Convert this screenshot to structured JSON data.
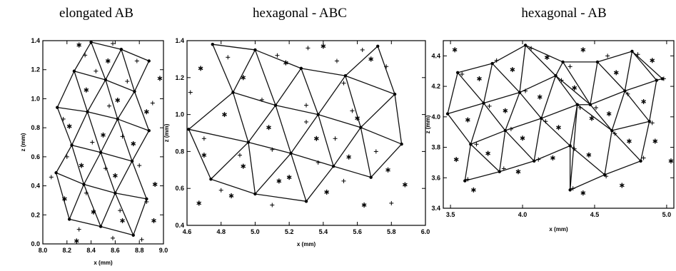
{
  "chart_data": [
    {
      "type": "scatter",
      "title": "elongated AB",
      "xlabel": "x (mm)",
      "ylabel": "z (mm)",
      "xlim": [
        8.0,
        9.0
      ],
      "ylim": [
        0.0,
        1.4
      ],
      "x_ticks": [
        "8.0",
        "8.2",
        "8.4",
        "8.6",
        "8.8",
        "9.0"
      ],
      "y_ticks": [
        "0.0",
        "0.2",
        "0.4",
        "0.6",
        "0.8",
        "1.0",
        "1.2",
        "1.4"
      ],
      "grid": false,
      "nodes": [
        [
          8.4,
          1.39
        ],
        [
          8.65,
          1.34
        ],
        [
          8.88,
          1.26
        ],
        [
          8.26,
          1.19
        ],
        [
          8.52,
          1.13
        ],
        [
          8.76,
          1.05
        ],
        [
          8.12,
          0.94
        ],
        [
          8.37,
          0.91
        ],
        [
          8.62,
          0.86
        ],
        [
          8.88,
          0.78
        ],
        [
          8.24,
          0.68
        ],
        [
          8.48,
          0.63
        ],
        [
          8.74,
          0.57
        ],
        [
          8.11,
          0.49
        ],
        [
          8.34,
          0.41
        ],
        [
          8.6,
          0.35
        ],
        [
          8.86,
          0.31
        ],
        [
          8.22,
          0.17
        ],
        [
          8.48,
          0.12
        ],
        [
          8.75,
          0.06
        ]
      ],
      "edges": [
        [
          0,
          1
        ],
        [
          1,
          2
        ],
        [
          3,
          4
        ],
        [
          4,
          5
        ],
        [
          6,
          7
        ],
        [
          7,
          8
        ],
        [
          8,
          9
        ],
        [
          10,
          11
        ],
        [
          11,
          12
        ],
        [
          13,
          14
        ],
        [
          14,
          15
        ],
        [
          15,
          16
        ],
        [
          17,
          18
        ],
        [
          18,
          19
        ],
        [
          0,
          3
        ],
        [
          0,
          4
        ],
        [
          1,
          4
        ],
        [
          1,
          5
        ],
        [
          2,
          5
        ],
        [
          3,
          6
        ],
        [
          3,
          7
        ],
        [
          4,
          7
        ],
        [
          4,
          8
        ],
        [
          5,
          8
        ],
        [
          5,
          9
        ],
        [
          6,
          10
        ],
        [
          7,
          10
        ],
        [
          7,
          11
        ],
        [
          8,
          11
        ],
        [
          8,
          12
        ],
        [
          9,
          12
        ],
        [
          10,
          13
        ],
        [
          10,
          14
        ],
        [
          11,
          14
        ],
        [
          11,
          15
        ],
        [
          12,
          15
        ],
        [
          12,
          16
        ],
        [
          13,
          17
        ],
        [
          14,
          17
        ],
        [
          14,
          18
        ],
        [
          15,
          18
        ],
        [
          15,
          19
        ],
        [
          16,
          19
        ]
      ],
      "stars": [
        [
          8.3,
          1.37
        ],
        [
          8.54,
          1.26
        ],
        [
          8.97,
          1.14
        ],
        [
          8.36,
          1.06
        ],
        [
          8.62,
          0.99
        ],
        [
          8.22,
          0.81
        ],
        [
          8.5,
          0.75
        ],
        [
          8.75,
          0.69
        ],
        [
          8.86,
          0.91
        ],
        [
          8.32,
          0.54
        ],
        [
          8.6,
          0.47
        ],
        [
          8.93,
          0.41
        ],
        [
          8.18,
          0.31
        ],
        [
          8.42,
          0.22
        ],
        [
          8.66,
          0.16
        ],
        [
          8.92,
          0.16
        ],
        [
          8.28,
          0.02
        ]
      ],
      "pluses": [
        [
          8.58,
          1.38
        ],
        [
          8.35,
          1.3
        ],
        [
          8.78,
          1.26
        ],
        [
          8.44,
          1.19
        ],
        [
          8.7,
          1.12
        ],
        [
          8.91,
          0.97
        ],
        [
          8.55,
          0.95
        ],
        [
          8.17,
          0.86
        ],
        [
          8.66,
          0.74
        ],
        [
          8.41,
          0.7
        ],
        [
          8.2,
          0.6
        ],
        [
          8.8,
          0.54
        ],
        [
          8.52,
          0.52
        ],
        [
          8.07,
          0.46
        ],
        [
          8.36,
          0.35
        ],
        [
          8.64,
          0.23
        ],
        [
          8.86,
          0.29
        ],
        [
          8.3,
          0.1
        ],
        [
          8.58,
          0.04
        ],
        [
          8.82,
          0.03
        ]
      ]
    },
    {
      "type": "scatter",
      "title": "hexagonal - ABC",
      "xlabel": "x (mm)",
      "ylabel": "z (mm)",
      "xlim": [
        4.6,
        6.0
      ],
      "ylim": [
        0.4,
        1.4
      ],
      "x_ticks": [
        "4.6",
        "4.8",
        "5.0",
        "5.2",
        "5.4",
        "5.6",
        "5.8",
        "6.0"
      ],
      "y_ticks": [
        "0.4",
        "0.6",
        "0.8",
        "1.0",
        "1.2",
        "1.4"
      ],
      "grid": false,
      "nodes": [
        [
          4.75,
          1.38
        ],
        [
          5.0,
          1.35
        ],
        [
          5.27,
          1.25
        ],
        [
          5.53,
          1.21
        ],
        [
          5.72,
          1.37
        ],
        [
          4.87,
          1.12
        ],
        [
          5.12,
          1.05
        ],
        [
          5.37,
          1.0
        ],
        [
          5.62,
          0.93
        ],
        [
          5.82,
          1.11
        ],
        [
          4.61,
          0.92
        ],
        [
          4.96,
          0.85
        ],
        [
          5.21,
          0.79
        ],
        [
          5.46,
          0.72
        ],
        [
          5.86,
          0.84
        ],
        [
          4.74,
          0.65
        ],
        [
          5.0,
          0.57
        ],
        [
          5.3,
          0.53
        ],
        [
          5.68,
          0.66
        ]
      ],
      "edges": [
        [
          0,
          1
        ],
        [
          1,
          2
        ],
        [
          2,
          3
        ],
        [
          3,
          4
        ],
        [
          5,
          6
        ],
        [
          6,
          7
        ],
        [
          7,
          8
        ],
        [
          8,
          9
        ],
        [
          10,
          11
        ],
        [
          11,
          12
        ],
        [
          12,
          13
        ],
        [
          13,
          8
        ],
        [
          8,
          14
        ],
        [
          15,
          16
        ],
        [
          16,
          17
        ],
        [
          0,
          5
        ],
        [
          1,
          5
        ],
        [
          1,
          6
        ],
        [
          2,
          6
        ],
        [
          2,
          7
        ],
        [
          3,
          7
        ],
        [
          3,
          8
        ],
        [
          4,
          9
        ],
        [
          3,
          9
        ],
        [
          5,
          10
        ],
        [
          5,
          11
        ],
        [
          6,
          11
        ],
        [
          6,
          12
        ],
        [
          7,
          12
        ],
        [
          7,
          13
        ],
        [
          8,
          18
        ],
        [
          9,
          14
        ],
        [
          14,
          18
        ],
        [
          13,
          18
        ],
        [
          10,
          15
        ],
        [
          11,
          15
        ],
        [
          11,
          16
        ],
        [
          12,
          16
        ],
        [
          12,
          17
        ],
        [
          13,
          17
        ]
      ],
      "stars": [
        [
          4.68,
          1.25
        ],
        [
          4.93,
          1.2
        ],
        [
          5.18,
          1.28
        ],
        [
          5.4,
          1.37
        ],
        [
          5.68,
          1.3
        ],
        [
          4.82,
          1.0
        ],
        [
          5.08,
          0.93
        ],
        [
          5.36,
          0.87
        ],
        [
          5.6,
          0.98
        ],
        [
          4.7,
          0.78
        ],
        [
          4.93,
          0.72
        ],
        [
          5.2,
          0.66
        ],
        [
          5.55,
          0.77
        ],
        [
          5.78,
          0.7
        ],
        [
          4.86,
          0.56
        ],
        [
          5.14,
          0.64
        ],
        [
          5.42,
          0.58
        ],
        [
          4.67,
          0.52
        ],
        [
          5.64,
          0.51
        ],
        [
          5.88,
          0.62
        ]
      ],
      "pluses": [
        [
          4.84,
          1.31
        ],
        [
          5.13,
          1.32
        ],
        [
          5.31,
          1.36
        ],
        [
          5.48,
          1.29
        ],
        [
          5.63,
          1.35
        ],
        [
          4.62,
          1.12
        ],
        [
          5.04,
          1.08
        ],
        [
          5.3,
          1.05
        ],
        [
          5.52,
          1.17
        ],
        [
          5.77,
          1.26
        ],
        [
          4.7,
          0.87
        ],
        [
          5.1,
          0.81
        ],
        [
          5.47,
          0.87
        ],
        [
          5.3,
          0.96
        ],
        [
          5.57,
          1.02
        ],
        [
          4.91,
          0.78
        ],
        [
          5.37,
          0.74
        ],
        [
          5.71,
          0.8
        ],
        [
          4.8,
          0.59
        ],
        [
          5.1,
          0.51
        ],
        [
          5.52,
          0.64
        ],
        [
          5.8,
          0.52
        ]
      ]
    },
    {
      "type": "scatter",
      "title": "hexagonal - AB",
      "xlabel": "x (mm)",
      "ylabel": "z (mm)",
      "xlim": [
        3.45,
        5.05
      ],
      "ylim": [
        3.4,
        4.5
      ],
      "x_ticks": [
        "3.5",
        "4.0",
        "4.5",
        "5.0"
      ],
      "y_ticks": [
        "3.4",
        "3.6",
        "3.8",
        "4.0",
        "4.2",
        "4.4"
      ],
      "grid": false,
      "nodes": [
        [
          3.55,
          4.29
        ],
        [
          3.79,
          4.35
        ],
        [
          4.02,
          4.47
        ],
        [
          4.28,
          4.36
        ],
        [
          4.52,
          4.36
        ],
        [
          4.76,
          4.43
        ],
        [
          4.97,
          4.25
        ],
        [
          3.48,
          4.02
        ],
        [
          3.73,
          4.09
        ],
        [
          3.98,
          4.16
        ],
        [
          4.23,
          4.27
        ],
        [
          4.47,
          4.08
        ],
        [
          4.71,
          4.17
        ],
        [
          4.93,
          4.24
        ],
        [
          3.64,
          3.82
        ],
        [
          3.88,
          3.91
        ],
        [
          4.13,
          3.99
        ],
        [
          4.38,
          4.08
        ],
        [
          4.62,
          3.91
        ],
        [
          4.88,
          3.97
        ],
        [
          3.6,
          3.58
        ],
        [
          3.84,
          3.64
        ],
        [
          4.08,
          3.71
        ],
        [
          4.33,
          3.81
        ],
        [
          4.57,
          3.62
        ],
        [
          4.82,
          3.71
        ],
        [
          4.33,
          3.52
        ]
      ],
      "edges": [
        [
          0,
          1
        ],
        [
          1,
          2
        ],
        [
          2,
          3
        ],
        [
          3,
          4
        ],
        [
          4,
          5
        ],
        [
          5,
          6
        ],
        [
          7,
          8
        ],
        [
          8,
          9
        ],
        [
          9,
          10
        ],
        [
          10,
          11
        ],
        [
          11,
          12
        ],
        [
          12,
          13
        ],
        [
          14,
          15
        ],
        [
          15,
          16
        ],
        [
          16,
          17
        ],
        [
          17,
          18
        ],
        [
          18,
          19
        ],
        [
          20,
          21
        ],
        [
          21,
          22
        ],
        [
          22,
          23
        ],
        [
          23,
          24
        ],
        [
          24,
          25
        ],
        [
          0,
          7
        ],
        [
          0,
          8
        ],
        [
          1,
          8
        ],
        [
          1,
          9
        ],
        [
          2,
          9
        ],
        [
          2,
          10
        ],
        [
          3,
          10
        ],
        [
          3,
          11
        ],
        [
          4,
          11
        ],
        [
          4,
          12
        ],
        [
          5,
          12
        ],
        [
          5,
          13
        ],
        [
          6,
          13
        ],
        [
          7,
          14
        ],
        [
          8,
          14
        ],
        [
          8,
          15
        ],
        [
          9,
          15
        ],
        [
          9,
          16
        ],
        [
          10,
          16
        ],
        [
          10,
          17
        ],
        [
          11,
          17
        ],
        [
          11,
          18
        ],
        [
          12,
          18
        ],
        [
          12,
          19
        ],
        [
          13,
          19
        ],
        [
          14,
          20
        ],
        [
          14,
          21
        ],
        [
          15,
          21
        ],
        [
          15,
          22
        ],
        [
          16,
          22
        ],
        [
          16,
          23
        ],
        [
          17,
          23
        ],
        [
          17,
          26
        ],
        [
          18,
          24
        ],
        [
          18,
          25
        ],
        [
          19,
          25
        ],
        [
          23,
          26
        ],
        [
          26,
          24
        ]
      ],
      "stars": [
        [
          3.53,
          4.44
        ],
        [
          3.7,
          4.25
        ],
        [
          3.93,
          4.31
        ],
        [
          4.17,
          4.39
        ],
        [
          4.42,
          4.44
        ],
        [
          4.65,
          4.29
        ],
        [
          4.9,
          4.37
        ],
        [
          3.62,
          3.98
        ],
        [
          3.88,
          4.04
        ],
        [
          4.12,
          4.13
        ],
        [
          4.36,
          4.19
        ],
        [
          4.6,
          4.02
        ],
        [
          4.84,
          4.1
        ],
        [
          3.76,
          3.76
        ],
        [
          4.0,
          3.86
        ],
        [
          4.25,
          3.93
        ],
        [
          4.48,
          3.99
        ],
        [
          4.74,
          3.84
        ],
        [
          3.97,
          3.64
        ],
        [
          4.21,
          3.73
        ],
        [
          4.46,
          3.75
        ],
        [
          4.69,
          3.55
        ],
        [
          4.92,
          3.84
        ],
        [
          3.66,
          3.52
        ],
        [
          4.42,
          3.5
        ],
        [
          3.54,
          3.72
        ],
        [
          5.03,
          3.71
        ]
      ],
      "pluses": [
        [
          3.58,
          4.28
        ],
        [
          3.82,
          4.37
        ],
        [
          4.06,
          4.45
        ],
        [
          4.33,
          4.33
        ],
        [
          4.59,
          4.4
        ],
        [
          4.8,
          4.41
        ],
        [
          4.98,
          4.25
        ],
        [
          3.77,
          4.07
        ],
        [
          4.02,
          4.17
        ],
        [
          4.27,
          4.24
        ],
        [
          4.51,
          4.06
        ],
        [
          4.73,
          4.15
        ],
        [
          3.68,
          3.82
        ],
        [
          3.92,
          3.92
        ],
        [
          4.16,
          3.97
        ],
        [
          4.4,
          4.06
        ],
        [
          4.64,
          3.89
        ],
        [
          4.9,
          3.96
        ],
        [
          3.62,
          3.59
        ],
        [
          3.87,
          3.66
        ],
        [
          4.11,
          3.72
        ],
        [
          4.36,
          3.79
        ],
        [
          4.58,
          3.61
        ],
        [
          4.84,
          3.73
        ],
        [
          4.35,
          3.53
        ]
      ]
    }
  ]
}
